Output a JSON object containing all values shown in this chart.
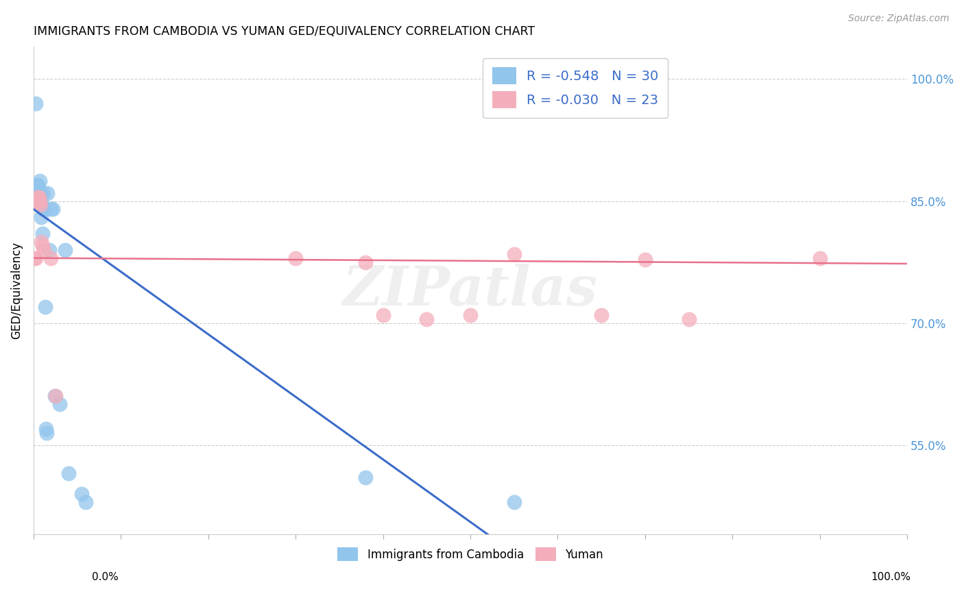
{
  "title": "IMMIGRANTS FROM CAMBODIA VS YUMAN GED/EQUIVALENCY CORRELATION CHART",
  "source": "Source: ZipAtlas.com",
  "ylabel": "GED/Equivalency",
  "legend_blue_r": "-0.548",
  "legend_blue_n": "30",
  "legend_pink_r": "-0.030",
  "legend_pink_n": "23",
  "legend_blue_label": "Immigrants from Cambodia",
  "legend_pink_label": "Yuman",
  "blue_color": "#92C5EC",
  "pink_color": "#F4AEBB",
  "trendline_blue_color": "#3B6CC9",
  "trendline_pink_color": "#E8708A",
  "legend_text_color": "#3B6CC9",
  "right_axis_color": "#4D96D9",
  "background_color": "#FFFFFF",
  "watermark": "ZIPatlas",
  "blue_x": [
    0.002,
    0.004,
    0.005,
    0.005,
    0.006,
    0.007,
    0.007,
    0.008,
    0.008,
    0.009,
    0.009,
    0.01,
    0.01,
    0.011,
    0.012,
    0.013,
    0.014,
    0.015,
    0.016,
    0.018,
    0.02,
    0.022,
    0.024,
    0.03,
    0.036,
    0.04,
    0.055,
    0.06,
    0.38,
    0.55
  ],
  "blue_y": [
    0.97,
    0.87,
    0.87,
    0.85,
    0.855,
    0.85,
    0.875,
    0.85,
    0.86,
    0.85,
    0.83,
    0.84,
    0.81,
    0.86,
    0.84,
    0.72,
    0.57,
    0.565,
    0.86,
    0.79,
    0.84,
    0.84,
    0.61,
    0.6,
    0.79,
    0.515,
    0.49,
    0.48,
    0.51,
    0.48
  ],
  "pink_x": [
    0.001,
    0.002,
    0.003,
    0.004,
    0.005,
    0.006,
    0.007,
    0.008,
    0.009,
    0.01,
    0.012,
    0.02,
    0.025,
    0.3,
    0.38,
    0.4,
    0.45,
    0.5,
    0.55,
    0.65,
    0.7,
    0.75,
    0.9
  ],
  "pink_y": [
    0.78,
    0.78,
    0.85,
    0.85,
    0.855,
    0.855,
    0.85,
    0.845,
    0.8,
    0.795,
    0.79,
    0.78,
    0.61,
    0.78,
    0.775,
    0.71,
    0.705,
    0.71,
    0.785,
    0.71,
    0.778,
    0.705,
    0.78
  ],
  "blue_trendline_x": [
    0.0,
    0.52
  ],
  "blue_trendline_y": [
    0.84,
    0.44
  ],
  "pink_trendline_x": [
    0.0,
    1.0
  ],
  "pink_trendline_y": [
    0.78,
    0.773
  ],
  "xlim": [
    0.0,
    1.0
  ],
  "ylim": [
    0.44,
    1.04
  ],
  "ytick_positions": [
    0.55,
    0.7,
    0.85,
    1.0
  ],
  "ytick_labels": [
    "55.0%",
    "70.0%",
    "85.0%",
    "100.0%"
  ],
  "xtick_positions": [
    0.0,
    0.1,
    0.2,
    0.3,
    0.4,
    0.5,
    0.6,
    0.7,
    0.8,
    0.9,
    1.0
  ]
}
